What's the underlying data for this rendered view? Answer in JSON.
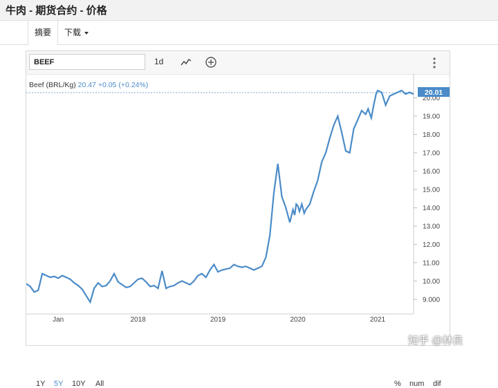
{
  "page": {
    "title": "牛肉 - 期货合约 - 价格"
  },
  "tabs": [
    {
      "label": "摘要"
    },
    {
      "label": "下载"
    }
  ],
  "toolbar": {
    "symbol": "BEEF",
    "interval": "1d",
    "line_icon": "line-chart-icon",
    "add_icon": "plus-circle-icon",
    "menu_icon": "vertical-dots-icon"
  },
  "legend": {
    "name": "Beef (BRL/Kg)",
    "price": "20.47",
    "change": "+0.05 (+0.24%)"
  },
  "price_label": "20.01",
  "range_buttons": [
    {
      "label": "1Y"
    },
    {
      "label": "5Y",
      "active": true
    },
    {
      "label": "10Y"
    },
    {
      "label": "All"
    }
  ],
  "footer": {
    "percent": "%",
    "num": "num",
    "dif": "dif"
  },
  "watermark": "知乎 @林良",
  "colors": {
    "line": "#4a8bc8",
    "price_tag": "#4a8bc8"
  },
  "chart_data": {
    "type": "line",
    "series": [
      {
        "x": [
          2016.6,
          2016.65,
          2016.7,
          2016.75,
          2016.8,
          2016.85,
          2016.9,
          2016.95,
          2017.0,
          2017.05,
          2017.1,
          2017.15,
          2017.2,
          2017.25,
          2017.3,
          2017.35,
          2017.4,
          2017.45,
          2017.5,
          2017.55,
          2017.6,
          2017.65,
          2017.7,
          2017.75,
          2017.8,
          2017.85,
          2017.9,
          2017.95,
          2018.0,
          2018.05,
          2018.1,
          2018.15,
          2018.2,
          2018.25,
          2018.3,
          2018.35,
          2018.4,
          2018.45,
          2018.5,
          2018.55,
          2018.6,
          2018.65,
          2018.7,
          2018.75,
          2018.8,
          2018.85,
          2018.9,
          2018.95,
          2019.0,
          2019.05,
          2019.1,
          2019.15,
          2019.2,
          2019.25,
          2019.3,
          2019.35,
          2019.4,
          2019.45,
          2019.5,
          2019.55,
          2019.6,
          2019.65,
          2019.7,
          2019.75,
          2019.8,
          2019.85,
          2019.9,
          2019.94,
          2019.96,
          2019.98,
          2020.0,
          2020.02,
          2020.05,
          2020.08,
          2020.1,
          2020.15,
          2020.2,
          2020.25,
          2020.3,
          2020.35,
          2020.4,
          2020.45,
          2020.5,
          2020.55,
          2020.6,
          2020.65,
          2020.7,
          2020.75,
          2020.8,
          2020.85,
          2020.88,
          2020.92,
          2020.95,
          2020.98,
          2021.0,
          2021.05,
          2021.1,
          2021.15,
          2021.2,
          2021.25,
          2021.3,
          2021.35,
          2021.4,
          2021.45
        ],
        "y": [
          9.85,
          9.7,
          9.4,
          9.5,
          10.4,
          10.3,
          10.2,
          10.25,
          10.15,
          10.3,
          10.2,
          10.1,
          9.9,
          9.75,
          9.55,
          9.2,
          8.85,
          9.6,
          9.9,
          9.7,
          9.75,
          10.0,
          10.4,
          9.95,
          9.8,
          9.65,
          9.7,
          9.9,
          10.1,
          10.15,
          9.95,
          9.7,
          9.75,
          9.6,
          10.55,
          9.6,
          9.7,
          9.75,
          9.9,
          10.0,
          9.9,
          9.8,
          10.0,
          10.3,
          10.4,
          10.2,
          10.6,
          10.9,
          10.5,
          10.6,
          10.65,
          10.7,
          10.9,
          10.8,
          10.75,
          10.8,
          10.7,
          10.6,
          10.7,
          10.8,
          11.3,
          12.5,
          14.8,
          16.4,
          14.6,
          14.0,
          13.2,
          13.9,
          13.6,
          14.2,
          14.1,
          13.8,
          14.2,
          13.7,
          13.9,
          14.2,
          14.9,
          15.5,
          16.5,
          17.0,
          17.8,
          18.5,
          19.0,
          18.1,
          17.1,
          17.0,
          18.3,
          18.8,
          19.3,
          19.1,
          19.4,
          18.9,
          19.6,
          20.2,
          20.4,
          20.3,
          19.6,
          20.1,
          20.2,
          20.3,
          20.4,
          20.2,
          20.3,
          20.2
        ]
      }
    ],
    "ylim": [
      8.2,
      21.3
    ],
    "xlim": [
      2016.6,
      2021.45
    ],
    "yticks": [
      "9.000",
      "10.00",
      "11.00",
      "12.00",
      "13.00",
      "14.00",
      "15.00",
      "16.00",
      "17.00",
      "18.00",
      "19.00",
      "20.00"
    ],
    "xticks": [
      "Jan",
      "2018",
      "2019",
      "2020",
      "2021"
    ],
    "grid": false
  }
}
